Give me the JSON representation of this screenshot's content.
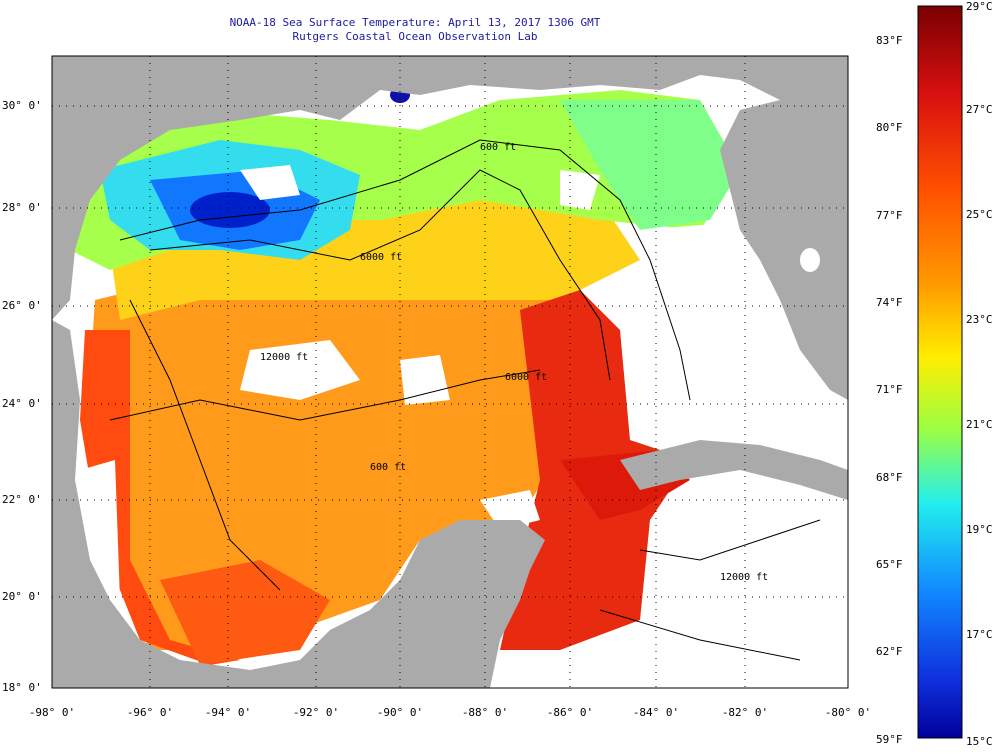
{
  "title": {
    "line1": "NOAA-18 Sea Surface Temperature:  April 13, 2017 1306 GMT",
    "line2": "Rutgers Coastal Ocean Observation Lab"
  },
  "map": {
    "lat_labels": [
      "30° 0'",
      "28° 0'",
      "26° 0'",
      "24° 0'",
      "22° 0'",
      "20° 0'",
      "18° 0'"
    ],
    "lon_labels": [
      "-98° 0'",
      "-96° 0'",
      "-94° 0'",
      "-92° 0'",
      "-90° 0'",
      "-88° 0'",
      "-86° 0'",
      "-84° 0'",
      "-82° 0'",
      "-80° 0'"
    ],
    "contour_labels": [
      "600 ft",
      "6000 ft",
      "12000 ft",
      "6000 ft",
      "600 ft",
      "12000 ft"
    ],
    "land_color": "#aaaaaa",
    "cloud_color": "#ffffff"
  },
  "colorbar": {
    "fahrenheit": [
      "83°F",
      "80°F",
      "77°F",
      "74°F",
      "71°F",
      "68°F",
      "65°F",
      "62°F",
      "59°F"
    ],
    "celsius": [
      "29°C",
      "27°C",
      "25°C",
      "23°C",
      "21°C",
      "19°C",
      "17°C",
      "15°C"
    ],
    "colors": [
      "#8b0000",
      "#e01010",
      "#ff5500",
      "#ff9900",
      "#ffee00",
      "#99ff44",
      "#22eeee",
      "#1188ff",
      "#0000bb"
    ]
  }
}
